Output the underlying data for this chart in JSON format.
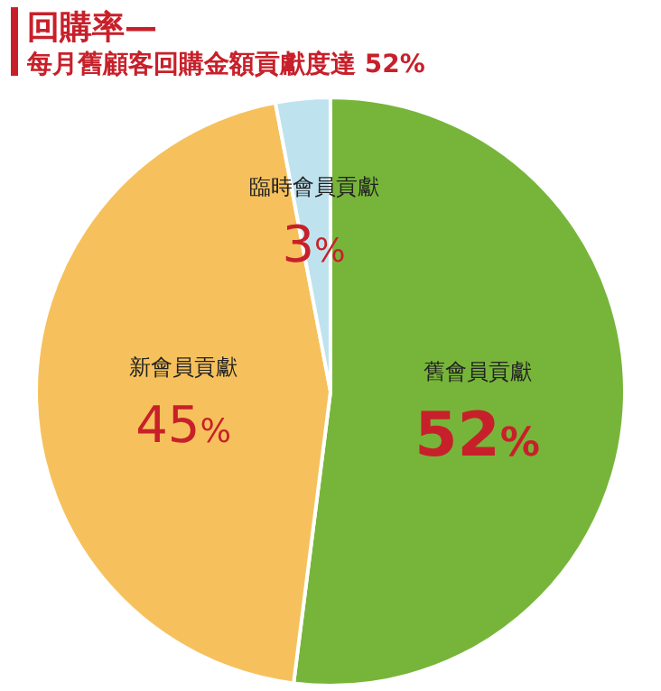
{
  "chart_data": {
    "type": "pie",
    "title": "回購率—",
    "subtitle": "每月舊顧客回購金額貢獻度達 52%",
    "categories": [
      "舊會員貢獻",
      "新會員貢獻",
      "臨時會員貢獻"
    ],
    "values": [
      52,
      45,
      3
    ],
    "colors": [
      "#77b53a",
      "#f6c15c",
      "#bfe3ee"
    ],
    "value_labels": [
      "52%",
      "45%",
      "3%"
    ]
  }
}
